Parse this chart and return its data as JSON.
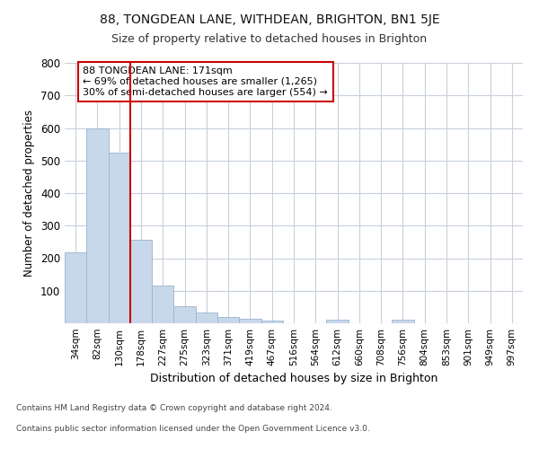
{
  "title1": "88, TONGDEAN LANE, WITHDEAN, BRIGHTON, BN1 5JE",
  "title2": "Size of property relative to detached houses in Brighton",
  "xlabel": "Distribution of detached houses by size in Brighton",
  "ylabel": "Number of detached properties",
  "categories": [
    "34sqm",
    "82sqm",
    "130sqm",
    "178sqm",
    "227sqm",
    "275sqm",
    "323sqm",
    "371sqm",
    "419sqm",
    "467sqm",
    "516sqm",
    "564sqm",
    "612sqm",
    "660sqm",
    "708sqm",
    "756sqm",
    "804sqm",
    "853sqm",
    "901sqm",
    "949sqm",
    "997sqm"
  ],
  "values": [
    217,
    600,
    523,
    257,
    115,
    52,
    34,
    20,
    15,
    9,
    0,
    0,
    10,
    0,
    0,
    10,
    0,
    0,
    0,
    0,
    0
  ],
  "bar_color": "#c8d8eb",
  "bar_edge_color": "#9ab4cc",
  "vline_color": "#cc0000",
  "vline_pos": 3,
  "annotation_text": "88 TONGDEAN LANE: 171sqm\n← 69% of detached houses are smaller (1,265)\n30% of semi-detached houses are larger (554) →",
  "annotation_box_color": "#ffffff",
  "annotation_box_edge": "#cc0000",
  "ylim": [
    0,
    800
  ],
  "yticks": [
    0,
    100,
    200,
    300,
    400,
    500,
    600,
    700,
    800
  ],
  "footer1": "Contains HM Land Registry data © Crown copyright and database right 2024.",
  "footer2": "Contains public sector information licensed under the Open Government Licence v3.0.",
  "bg_color": "#ffffff",
  "plot_bg_color": "#ffffff",
  "grid_color": "#c8d0dc"
}
